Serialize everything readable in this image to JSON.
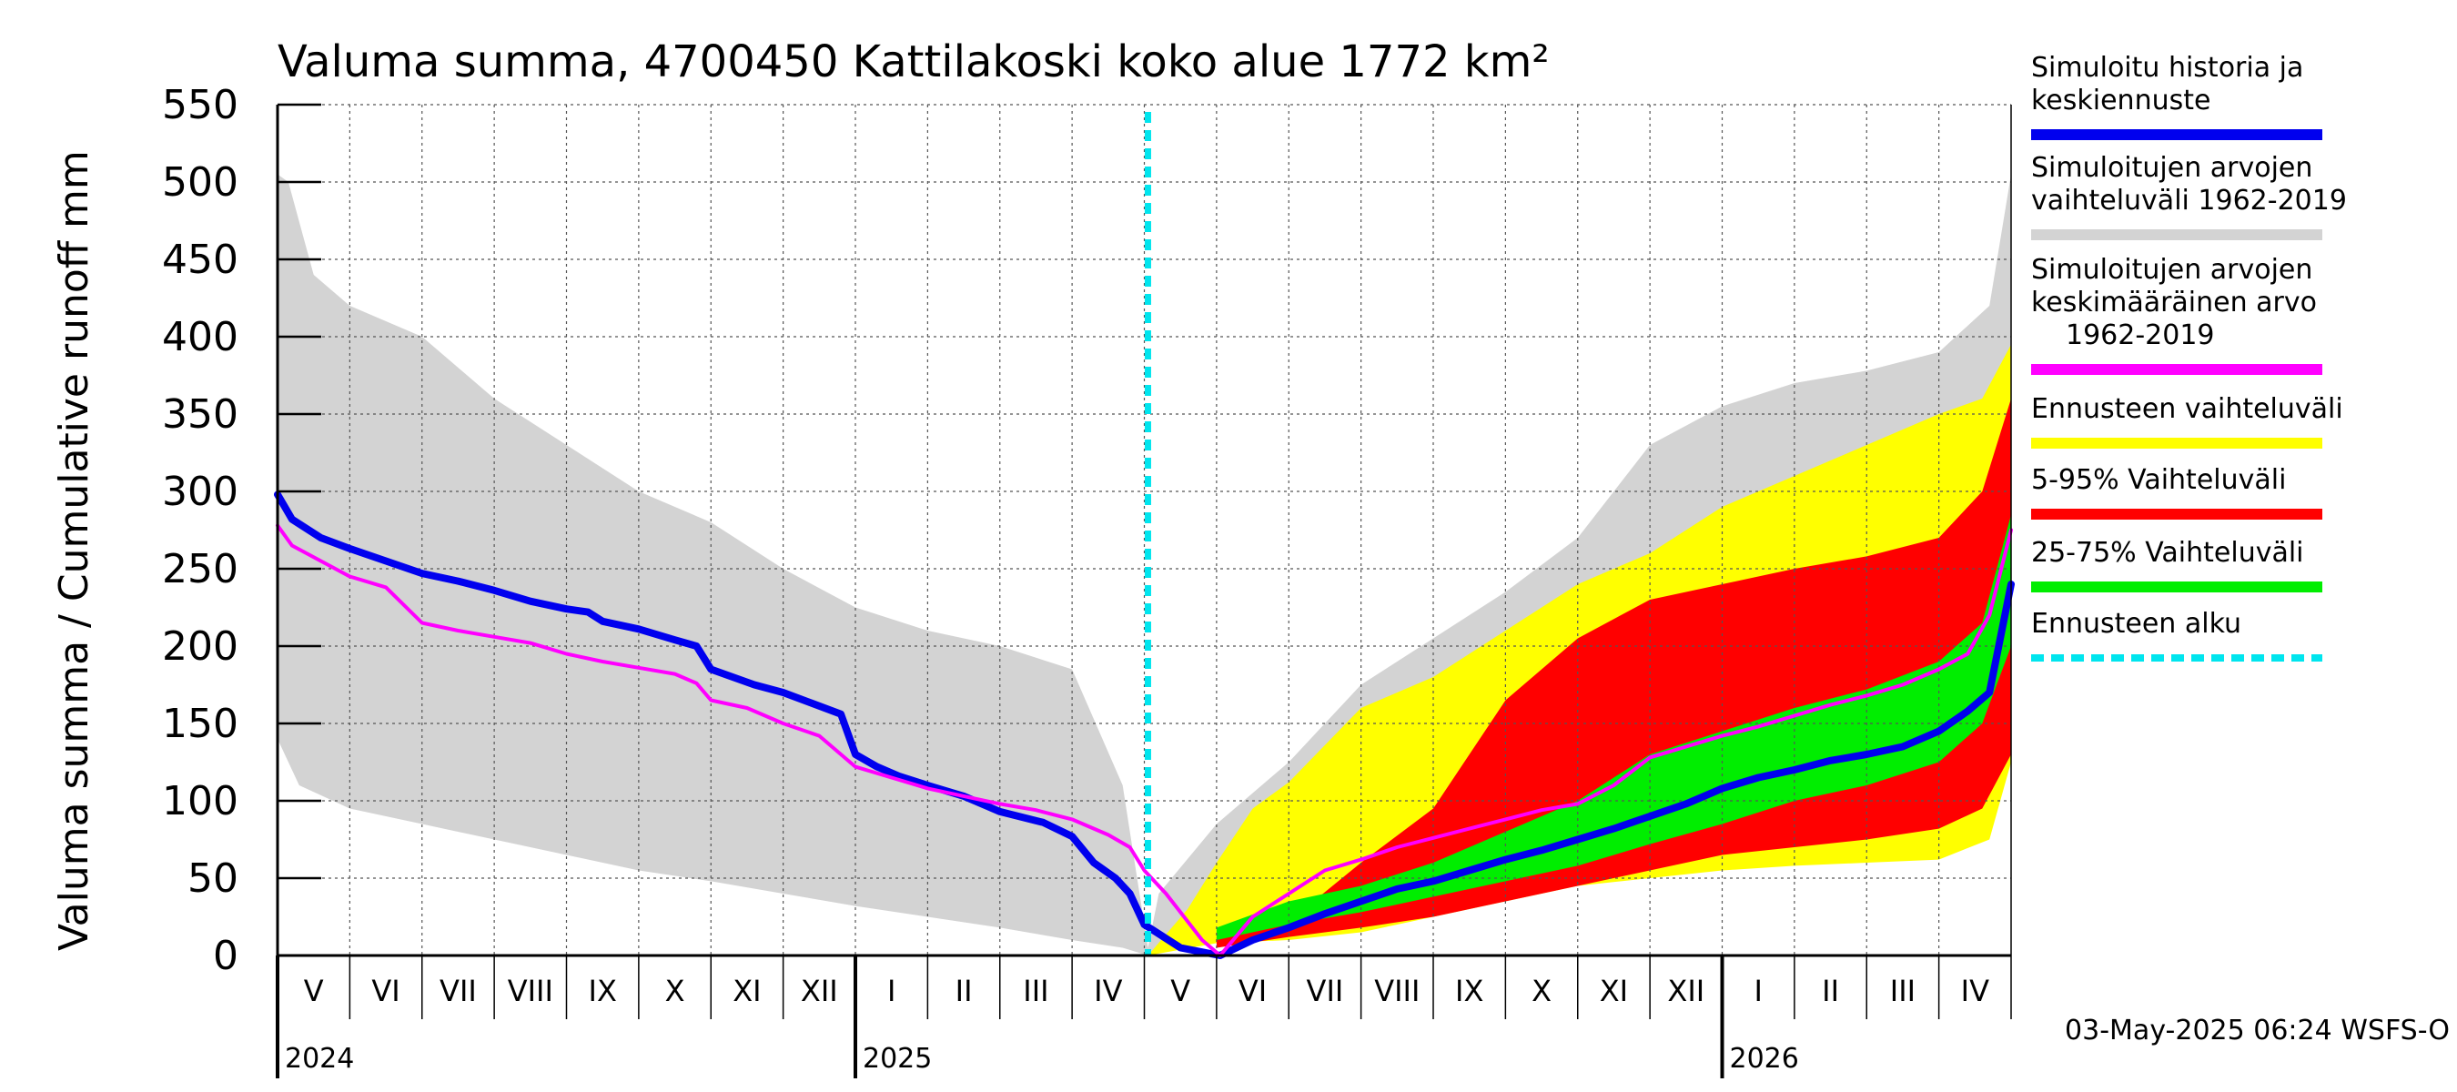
{
  "chart_data": {
    "type": "area",
    "title": "Valuma summa, 4700450 Kattilakoski koko alue 1772 km²",
    "ylabel": "Valuma summa / Cumulative runoff    mm",
    "ylim": [
      0,
      550
    ],
    "yticks": [
      "0",
      "50",
      "100",
      "150",
      "200",
      "250",
      "300",
      "350",
      "400",
      "450",
      "500",
      "550"
    ],
    "x_unit": "months since 1 May 2024",
    "xlim": [
      0,
      24
    ],
    "forecast_start": 12.05,
    "grid": true,
    "months": [
      "V",
      "VI",
      "VII",
      "VIII",
      "IX",
      "X",
      "XI",
      "XII",
      "I",
      "II",
      "III",
      "IV",
      "V",
      "VI",
      "VII",
      "VIII",
      "IX",
      "X",
      "XI",
      "XII",
      "I",
      "II",
      "III",
      "IV"
    ],
    "years": [
      {
        "label": "2024",
        "at": 0
      },
      {
        "label": "2025",
        "at": 8
      },
      {
        "label": "2026",
        "at": 20
      }
    ],
    "series": [
      {
        "name": "Simuloitujen arvojen vaihteluväli 1962-2019",
        "color": "#d3d3d3",
        "upper": [
          [
            0,
            505
          ],
          [
            0.15,
            500
          ],
          [
            0.5,
            440
          ],
          [
            1,
            420
          ],
          [
            2,
            400
          ],
          [
            3,
            360
          ],
          [
            4,
            330
          ],
          [
            5,
            300
          ],
          [
            6,
            280
          ],
          [
            7,
            250
          ],
          [
            8,
            225
          ],
          [
            9,
            210
          ],
          [
            10,
            200
          ],
          [
            11,
            185
          ],
          [
            11.7,
            110
          ],
          [
            12.05,
            5
          ],
          [
            12.2,
            40
          ],
          [
            13,
            85
          ],
          [
            14,
            125
          ],
          [
            15,
            175
          ],
          [
            16,
            205
          ],
          [
            17,
            235
          ],
          [
            18,
            270
          ],
          [
            19,
            330
          ],
          [
            20,
            355
          ],
          [
            21,
            370
          ],
          [
            22,
            378
          ],
          [
            23,
            390
          ],
          [
            23.7,
            420
          ],
          [
            24,
            505
          ]
        ],
        "lower": [
          [
            0,
            140
          ],
          [
            0.3,
            110
          ],
          [
            1,
            95
          ],
          [
            2,
            85
          ],
          [
            3,
            75
          ],
          [
            4,
            65
          ],
          [
            5,
            55
          ],
          [
            6,
            48
          ],
          [
            7,
            40
          ],
          [
            8,
            32
          ],
          [
            9,
            25
          ],
          [
            10,
            18
          ],
          [
            11,
            10
          ],
          [
            11.7,
            5
          ],
          [
            12.05,
            0
          ],
          [
            13,
            10
          ],
          [
            14,
            15
          ],
          [
            15,
            22
          ],
          [
            16,
            32
          ],
          [
            17,
            45
          ],
          [
            18,
            55
          ],
          [
            19,
            65
          ],
          [
            20,
            70
          ],
          [
            21,
            72
          ],
          [
            22,
            75
          ],
          [
            23,
            80
          ],
          [
            23.6,
            90
          ],
          [
            24,
            140
          ]
        ]
      },
      {
        "name": "Ennusteen vaihteluväli",
        "color": "#ffff00",
        "upper": [
          [
            12.05,
            0
          ],
          [
            12.6,
            30
          ],
          [
            13,
            60
          ],
          [
            13.5,
            95
          ],
          [
            14,
            112
          ],
          [
            15,
            160
          ],
          [
            16,
            180
          ],
          [
            17,
            210
          ],
          [
            18,
            240
          ],
          [
            19,
            260
          ],
          [
            20,
            290
          ],
          [
            21,
            310
          ],
          [
            22,
            330
          ],
          [
            23,
            350
          ],
          [
            23.6,
            360
          ],
          [
            24,
            395
          ]
        ],
        "lower": [
          [
            12.05,
            0
          ],
          [
            13,
            8
          ],
          [
            14,
            10
          ],
          [
            15,
            15
          ],
          [
            16,
            25
          ],
          [
            17,
            35
          ],
          [
            18,
            45
          ],
          [
            19,
            50
          ],
          [
            20,
            55
          ],
          [
            21,
            58
          ],
          [
            22,
            60
          ],
          [
            23,
            62
          ],
          [
            23.7,
            75
          ],
          [
            24,
            125
          ]
        ]
      },
      {
        "name": "5-95% Vaihteluväli",
        "color": "#ff0000",
        "upper": [
          [
            13,
            12
          ],
          [
            14,
            22
          ],
          [
            15,
            60
          ],
          [
            16,
            95
          ],
          [
            17,
            165
          ],
          [
            18,
            205
          ],
          [
            19,
            230
          ],
          [
            20,
            240
          ],
          [
            21,
            250
          ],
          [
            22,
            258
          ],
          [
            23,
            270
          ],
          [
            23.6,
            300
          ],
          [
            24,
            360
          ]
        ],
        "lower": [
          [
            13,
            5
          ],
          [
            14,
            12
          ],
          [
            15,
            18
          ],
          [
            16,
            25
          ],
          [
            17,
            35
          ],
          [
            18,
            45
          ],
          [
            19,
            55
          ],
          [
            20,
            65
          ],
          [
            21,
            70
          ],
          [
            22,
            75
          ],
          [
            23,
            82
          ],
          [
            23.6,
            95
          ],
          [
            24,
            130
          ]
        ]
      },
      {
        "name": "25-75% Vaihteluväli",
        "color": "#00ee00",
        "upper": [
          [
            13,
            18
          ],
          [
            14,
            35
          ],
          [
            15,
            45
          ],
          [
            16,
            60
          ],
          [
            17,
            80
          ],
          [
            18,
            100
          ],
          [
            19,
            130
          ],
          [
            20,
            145
          ],
          [
            21,
            160
          ],
          [
            22,
            172
          ],
          [
            23,
            190
          ],
          [
            23.6,
            215
          ],
          [
            24,
            285
          ]
        ],
        "lower": [
          [
            13,
            10
          ],
          [
            14,
            20
          ],
          [
            15,
            28
          ],
          [
            16,
            38
          ],
          [
            17,
            48
          ],
          [
            18,
            58
          ],
          [
            19,
            72
          ],
          [
            20,
            85
          ],
          [
            21,
            100
          ],
          [
            22,
            110
          ],
          [
            23,
            125
          ],
          [
            23.6,
            150
          ],
          [
            24,
            200
          ]
        ]
      }
    ],
    "lines": [
      {
        "name": "Simuloitu historia ja keskiennuste",
        "color": "#0000ee",
        "points": [
          [
            0,
            298
          ],
          [
            0.2,
            282
          ],
          [
            0.6,
            270
          ],
          [
            1,
            263
          ],
          [
            1.5,
            255
          ],
          [
            2,
            247
          ],
          [
            2.5,
            242
          ],
          [
            3,
            236
          ],
          [
            3.5,
            229
          ],
          [
            4,
            224
          ],
          [
            4.3,
            222
          ],
          [
            4.5,
            216
          ],
          [
            5,
            211
          ],
          [
            5.5,
            204
          ],
          [
            5.8,
            200
          ],
          [
            6,
            185
          ],
          [
            6.3,
            180
          ],
          [
            6.6,
            175
          ],
          [
            7,
            170
          ],
          [
            7.4,
            163
          ],
          [
            7.8,
            156
          ],
          [
            8,
            130
          ],
          [
            8.3,
            122
          ],
          [
            8.6,
            116
          ],
          [
            9,
            110
          ],
          [
            9.5,
            103
          ],
          [
            10,
            93
          ],
          [
            10.6,
            86
          ],
          [
            11,
            77
          ],
          [
            11.3,
            60
          ],
          [
            11.6,
            50
          ],
          [
            11.8,
            40
          ],
          [
            12,
            20
          ],
          [
            12.5,
            5
          ],
          [
            13.05,
            0
          ],
          [
            13.5,
            10
          ],
          [
            14,
            18
          ],
          [
            14.5,
            27
          ],
          [
            15,
            35
          ],
          [
            15.5,
            43
          ],
          [
            16,
            48
          ],
          [
            16.5,
            55
          ],
          [
            17,
            62
          ],
          [
            17.5,
            68
          ],
          [
            18,
            75
          ],
          [
            18.5,
            82
          ],
          [
            19,
            90
          ],
          [
            19.5,
            98
          ],
          [
            20,
            108
          ],
          [
            20.5,
            115
          ],
          [
            21,
            120
          ],
          [
            21.5,
            126
          ],
          [
            22,
            130
          ],
          [
            22.5,
            135
          ],
          [
            23,
            145
          ],
          [
            23.4,
            158
          ],
          [
            23.7,
            170
          ],
          [
            24,
            240
          ]
        ]
      },
      {
        "name": "Simuloitujen arvojen keskimääräinen arvo 1962-2019",
        "color": "#ff00ff",
        "points": [
          [
            0,
            278
          ],
          [
            0.2,
            265
          ],
          [
            0.6,
            255
          ],
          [
            1,
            245
          ],
          [
            1.5,
            238
          ],
          [
            2,
            215
          ],
          [
            2.5,
            210
          ],
          [
            3,
            206
          ],
          [
            3.5,
            202
          ],
          [
            4,
            195
          ],
          [
            4.5,
            190
          ],
          [
            5,
            186
          ],
          [
            5.5,
            182
          ],
          [
            5.8,
            176
          ],
          [
            6,
            165
          ],
          [
            6.5,
            160
          ],
          [
            7,
            150
          ],
          [
            7.5,
            142
          ],
          [
            8,
            122
          ],
          [
            8.5,
            115
          ],
          [
            9,
            108
          ],
          [
            9.5,
            103
          ],
          [
            10,
            98
          ],
          [
            10.5,
            94
          ],
          [
            11,
            88
          ],
          [
            11.5,
            78
          ],
          [
            11.8,
            70
          ],
          [
            12,
            55
          ],
          [
            12.3,
            40
          ],
          [
            12.8,
            10
          ],
          [
            13.05,
            0
          ],
          [
            13.5,
            25
          ],
          [
            14,
            40
          ],
          [
            14.5,
            55
          ],
          [
            15,
            62
          ],
          [
            15.5,
            70
          ],
          [
            16,
            76
          ],
          [
            16.5,
            82
          ],
          [
            17,
            88
          ],
          [
            17.5,
            94
          ],
          [
            18,
            98
          ],
          [
            18.5,
            110
          ],
          [
            19,
            128
          ],
          [
            19.5,
            135
          ],
          [
            20,
            142
          ],
          [
            20.5,
            148
          ],
          [
            21,
            155
          ],
          [
            21.5,
            162
          ],
          [
            22,
            168
          ],
          [
            22.5,
            175
          ],
          [
            23,
            185
          ],
          [
            23.4,
            195
          ],
          [
            23.7,
            220
          ],
          [
            24,
            275
          ]
        ]
      },
      {
        "name": "Ennusteen alku",
        "color": "#00e5ee",
        "points": []
      }
    ]
  },
  "legend": [
    {
      "label": "Simuloitu historia ja keskiennuste",
      "lines": [
        "Simuloitu historia ja",
        "keskiennuste"
      ],
      "color": "#0000ee",
      "style": "solid"
    },
    {
      "label": "Simuloitujen arvojen vaihteluväli 1962-2019",
      "lines": [
        "Simuloitujen arvojen",
        "vaihteluväli 1962-2019"
      ],
      "color": "#d3d3d3",
      "style": "solid"
    },
    {
      "label": "Simuloitujen arvojen keskimääräinen arvo 1962-2019",
      "lines": [
        "Simuloitujen arvojen",
        "keskimääräinen arvo",
        "1962-2019"
      ],
      "color": "#ff00ff",
      "style": "solid"
    },
    {
      "label": "Ennusteen vaihteluväli",
      "lines": [
        "Ennusteen vaihteluväli"
      ],
      "color": "#ffff00",
      "style": "solid"
    },
    {
      "label": "5-95% Vaihteluväli",
      "lines": [
        "5-95% Vaihteluväli"
      ],
      "color": "#ff0000",
      "style": "solid"
    },
    {
      "label": "25-75% Vaihteluväli",
      "lines": [
        "25-75% Vaihteluväli"
      ],
      "color": "#00ee00",
      "style": "solid"
    },
    {
      "label": "Ennusteen alku",
      "lines": [
        "Ennusteen alku"
      ],
      "color": "#00e5ee",
      "style": "dashed"
    }
  ],
  "timestamp": "03-May-2025 06:24 WSFS-O"
}
